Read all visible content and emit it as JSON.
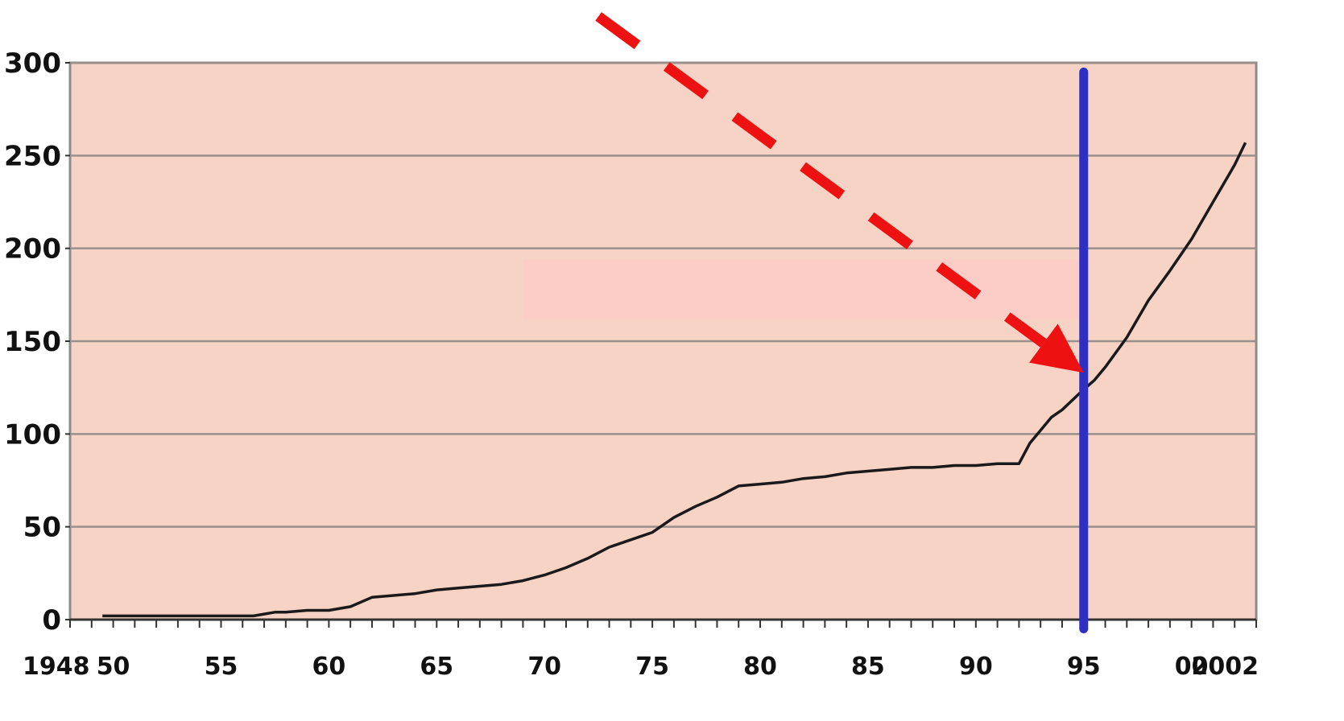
{
  "chart_data": {
    "type": "line",
    "title": "",
    "xlabel": "",
    "ylabel": "",
    "xlim": [
      1948,
      2003
    ],
    "ylim": [
      0,
      300
    ],
    "grid": true,
    "y_ticks": [
      0,
      50,
      100,
      150,
      200,
      250,
      300
    ],
    "y_tick_labels": [
      "0",
      "50",
      "100",
      "150",
      "200",
      "250",
      "300"
    ],
    "x_ticks": [
      1948,
      1950,
      1955,
      1960,
      1965,
      1970,
      1975,
      1980,
      1985,
      1990,
      1995,
      2000,
      2002
    ],
    "x_tick_labels": [
      "1948",
      "50",
      "55",
      "60",
      "65",
      "70",
      "75",
      "80",
      "85",
      "90",
      "95",
      "00",
      "2002"
    ],
    "series": [
      {
        "x": [
          1949.5,
          1951,
          1953,
          1955,
          1956,
          1956.5,
          1957,
          1957.5,
          1958,
          1959,
          1960,
          1961,
          1962,
          1963,
          1964,
          1965,
          1966,
          1967,
          1968,
          1969,
          1970,
          1971,
          1972,
          1973,
          1974,
          1975,
          1976,
          1977,
          1978,
          1979,
          1980,
          1981,
          1982,
          1983,
          1984,
          1985,
          1986,
          1987,
          1988,
          1989,
          1990,
          1991,
          1992,
          1992.5,
          1993.5,
          1994,
          1995,
          1995.5,
          1996,
          1997,
          1998,
          1999,
          2000,
          2001,
          2002,
          2002.5
        ],
        "y": [
          2,
          2,
          2,
          2,
          2,
          2,
          3,
          4,
          4,
          5,
          5,
          7,
          12,
          13,
          14,
          16,
          17,
          18,
          19,
          21,
          24,
          28,
          33,
          39,
          43,
          47,
          55,
          61,
          66,
          72,
          73,
          74,
          76,
          77,
          79,
          80,
          81,
          82,
          82,
          83,
          83,
          84,
          84,
          95,
          109,
          113,
          124,
          129,
          136,
          152,
          172,
          188,
          205,
          225,
          245,
          257
        ]
      }
    ],
    "colors": {
      "plot_background": "#f7d3c5",
      "shaded_band": "#fbcdc6",
      "gridline": "#9a8f8a",
      "line": "#1a1a1a",
      "marker_line": "#3030c0",
      "arrow": "#ee1111"
    },
    "shaded_band_x": [
      1969,
      1995
    ],
    "shaded_band_y": [
      162,
      194
    ],
    "annotations": [
      {
        "type": "vertical-line",
        "x": 1995
      },
      {
        "type": "dashed-arrow",
        "from": [
          1972.5,
          325
        ],
        "to": [
          1995,
          133
        ]
      }
    ]
  }
}
